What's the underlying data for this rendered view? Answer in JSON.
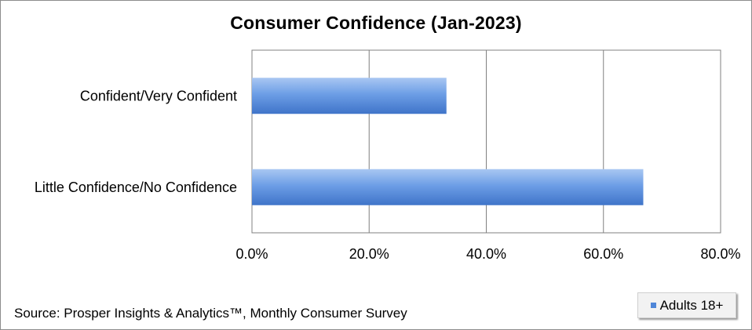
{
  "chart_data": {
    "type": "bar",
    "orientation": "horizontal",
    "title": "Consumer Confidence (Jan-2023)",
    "categories": [
      "Confident/Very Confident",
      "Little Confidence/No Confidence"
    ],
    "series": [
      {
        "name": "Adults 18+",
        "values": [
          33.2,
          66.8
        ],
        "color": "#4f86d8"
      }
    ],
    "xlim": [
      0,
      80
    ],
    "x_ticks": [
      "0.0%",
      "20.0%",
      "40.0%",
      "60.0%",
      "80.0%"
    ],
    "grid": true,
    "legend_position": "bottom-right"
  },
  "source": "Source: Prosper Insights & Analytics™, Monthly Consumer Survey"
}
